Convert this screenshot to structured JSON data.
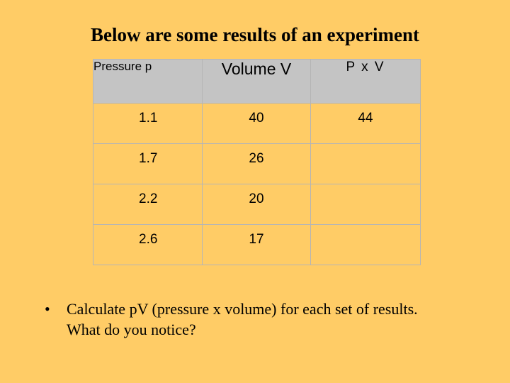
{
  "slide": {
    "title": "Below are some results of an experiment"
  },
  "table": {
    "headers": [
      "Pressure p",
      "Volume V",
      "P x V"
    ],
    "rows": [
      [
        "1.1",
        "40",
        "44"
      ],
      [
        "1.7",
        "26",
        ""
      ],
      [
        "2.2",
        "20",
        ""
      ],
      [
        "2.6",
        "17",
        ""
      ]
    ]
  },
  "bullet": {
    "marker": "•",
    "text_line1": "Calculate pV (pressure x volume) for each set of results.",
    "text_line2": "What do you notice?"
  }
}
